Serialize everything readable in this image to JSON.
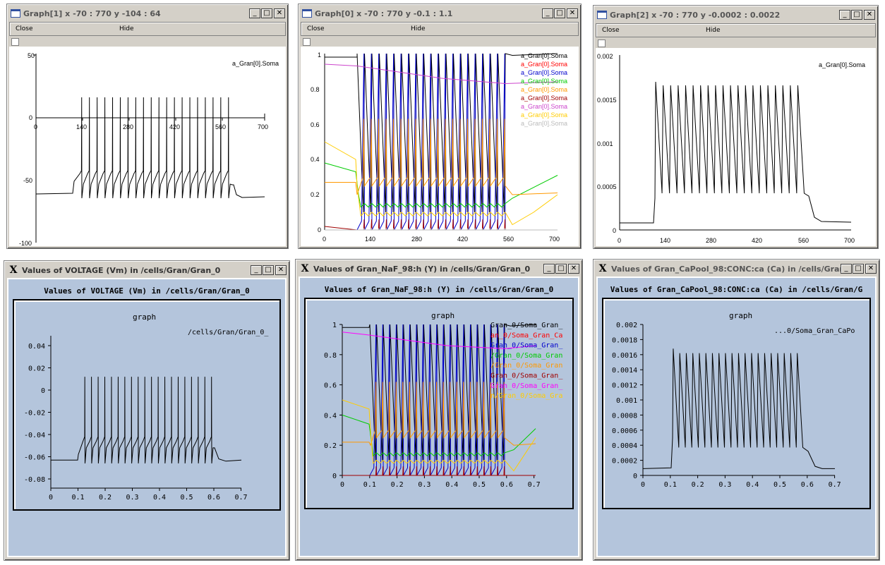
{
  "neuron_windows": [
    {
      "title": "Graph[1]",
      "coords": "x -70 : 770  y -104 : 64",
      "menu": {
        "close": "Close",
        "hide": "Hide"
      },
      "label": "a_Gran[0].Soma",
      "yticks": [
        "50",
        "0",
        "-50",
        "-100"
      ],
      "xticks": [
        "0",
        "140",
        "280",
        "420",
        "560",
        "700"
      ]
    },
    {
      "title": "Graph[0]",
      "coords": "x -70 : 770  y -0.1 : 1.1",
      "menu": {
        "close": "Close",
        "hide": "Hide"
      },
      "labels": [
        {
          "text": "a_Gran[0].Soma",
          "color": "#000000"
        },
        {
          "text": "a_Gran[0].Soma",
          "color": "#ff0000"
        },
        {
          "text": "a_Gran[0].Soma",
          "color": "#0000cc"
        },
        {
          "text": "a_Gran[0].Soma",
          "color": "#00cc00"
        },
        {
          "text": "a_Gran[0].Soma",
          "color": "#ff9900"
        },
        {
          "text": "a_Gran[0].Soma",
          "color": "#a00000"
        },
        {
          "text": "a_Gran[0].Soma",
          "color": "#cc44cc"
        },
        {
          "text": "a_Gran[0].Soma",
          "color": "#ffcc00"
        },
        {
          "text": "a_Gran[0].Soma",
          "color": "#bbbbbb"
        }
      ],
      "yticks": [
        "1",
        "0.8",
        "0.6",
        "0.4",
        "0.2",
        "0"
      ],
      "xticks": [
        "0",
        "140",
        "280",
        "420",
        "560",
        "700"
      ]
    },
    {
      "title": "Graph[2]",
      "coords": "x -70 : 770  y -0.0002 : 0.0022",
      "menu": {
        "close": "Close",
        "hide": "Hide"
      },
      "label": "a_Gran[0].Soma",
      "yticks": [
        "0.002",
        "0.0015",
        "0.001",
        "0.0005",
        "0"
      ],
      "xticks": [
        "0",
        "140",
        "280",
        "420",
        "560",
        "700"
      ]
    }
  ],
  "xgraph_windows": [
    {
      "window_title": "Values of VOLTAGE (Vm) in /cells/Gran/Gran_0",
      "heading": "Values of VOLTAGE (Vm) in /cells/Gran/Gran_0",
      "graph_label": "graph",
      "legend": [
        {
          "text": "/cells/Gran/Gran_0_",
          "color": "#000000"
        }
      ],
      "yticks": [
        "0.04",
        "0.02",
        "0",
        "-0.02",
        "-0.04",
        "-0.06",
        "-0.08"
      ],
      "xticks": [
        "0",
        "0.1",
        "0.2",
        "0.3",
        "0.4",
        "0.5",
        "0.6",
        "0.7"
      ]
    },
    {
      "window_title": "Values of Gran_NaF_98:h (Y) in /cells/Gran/Gran_0",
      "heading": "Values of Gran_NaF_98:h (Y) in /cells/Gran/Gran_0",
      "graph_label": "graph",
      "legend": [
        {
          "text": "Gran_0/Soma_Gran_",
          "color": "#000000"
        },
        {
          "text": "an_0/Soma_Gran_Ca",
          "color": "#ff0000"
        },
        {
          "text": "Gran_0/Soma_Gran_",
          "color": "#0000cc"
        },
        {
          "text": "/Gran_0/Soma_Gran",
          "color": "#00cc00"
        },
        {
          "text": "/Gran_0/Soma_Gran",
          "color": "#ff9900"
        },
        {
          "text": "Gran_0/Soma_Gran_",
          "color": "#a00000"
        },
        {
          "text": "Gran_0/Soma_Gran_",
          "color": "#ff00ff"
        },
        {
          "text": "n/Gran_0/Soma_Gra",
          "color": "#ffcc00"
        }
      ],
      "yticks": [
        "1",
        "0.8",
        "0.6",
        "0.4",
        "0.2",
        "0"
      ],
      "xticks": [
        "0",
        "0.1",
        "0.2",
        "0.3",
        "0.4",
        "0.5",
        "0.6",
        "0.7"
      ]
    },
    {
      "window_title": "Values of Gran_CaPool_98:CONC:ca (Ca) in /cells/Gran/G",
      "heading": "Values of Gran_CaPool_98:CONC:ca (Ca) in /cells/Gran/G",
      "graph_label": "graph",
      "legend": [
        {
          "text": "...0/Soma_Gran_CaPo",
          "color": "#000000"
        }
      ],
      "yticks": [
        "0.002",
        "0.0018",
        "0.0016",
        "0.0014",
        "0.0012",
        "0.001",
        "0.0008",
        "0.0006",
        "0.0004",
        "0.0002",
        "0"
      ],
      "xticks": [
        "0",
        "0.1",
        "0.2",
        "0.3",
        "0.4",
        "0.5",
        "0.6",
        "0.7"
      ]
    }
  ],
  "chart_data": [
    {
      "type": "line",
      "title": "",
      "xlabel": "",
      "ylabel": "",
      "xlim": [
        -70,
        770
      ],
      "ylim": [
        -104,
        64
      ],
      "series": [
        {
          "name": "a_Gran[0].Soma",
          "color": "#000000",
          "rest": -65,
          "spike_peak": 15,
          "trough": -65,
          "spike_start": 100,
          "spike_end": 590,
          "spike_count": 20
        }
      ]
    },
    {
      "type": "line",
      "title": "",
      "xlabel": "",
      "ylabel": "",
      "xlim": [
        -70,
        770
      ],
      "ylim": [
        -0.1,
        1.1
      ],
      "series": [
        {
          "name": "a_Gran[0].Soma",
          "color": "#000000",
          "start": 0.98
        },
        {
          "name": "a_Gran[0].Soma",
          "color": "#ff0000",
          "start": 0.0
        },
        {
          "name": "a_Gran[0].Soma",
          "color": "#0000cc",
          "start": 0.0
        },
        {
          "name": "a_Gran[0].Soma",
          "color": "#00cc00",
          "start": 0.38
        },
        {
          "name": "a_Gran[0].Soma",
          "color": "#ff9900",
          "start": 0.27
        },
        {
          "name": "a_Gran[0].Soma",
          "color": "#a00000",
          "start": 0.02
        },
        {
          "name": "a_Gran[0].Soma",
          "color": "#cc44cc",
          "start": 0.94
        },
        {
          "name": "a_Gran[0].Soma",
          "color": "#ffcc00",
          "start": 0.5
        },
        {
          "name": "a_Gran[0].Soma",
          "color": "#bbbbbb",
          "start": 0.0
        }
      ]
    },
    {
      "type": "line",
      "title": "",
      "xlabel": "",
      "ylabel": "",
      "xlim": [
        -70,
        770
      ],
      "ylim": [
        -0.0002,
        0.0022
      ],
      "series": [
        {
          "name": "a_Gran[0].Soma",
          "color": "#000000",
          "baseline": 9e-05,
          "peak": 0.00165,
          "trough": 0.00037
        }
      ]
    },
    {
      "type": "line",
      "title": "",
      "xlabel": "",
      "ylabel": "",
      "xlim": [
        0,
        0.7
      ],
      "ylim": [
        -0.08,
        0.05
      ],
      "series": [
        {
          "name": "/cells/Gran/Gran_0_",
          "color": "#000000",
          "rest": -0.065,
          "spike_peak": 0.015
        }
      ]
    },
    {
      "type": "line",
      "title": "",
      "xlabel": "",
      "ylabel": "",
      "xlim": [
        0,
        0.7
      ],
      "ylim": [
        0,
        1
      ],
      "series": [
        {
          "name": "Gran_0/Soma_Gran_",
          "color": "#000000"
        },
        {
          "name": "an_0/Soma_Gran_Ca",
          "color": "#ff0000"
        },
        {
          "name": "Gran_0/Soma_Gran_",
          "color": "#0000cc"
        },
        {
          "name": "/Gran_0/Soma_Gran",
          "color": "#00cc00"
        },
        {
          "name": "/Gran_0/Soma_Gran",
          "color": "#ff9900"
        },
        {
          "name": "Gran_0/Soma_Gran_",
          "color": "#a00000"
        },
        {
          "name": "Gran_0/Soma_Gran_",
          "color": "#ff00ff"
        },
        {
          "name": "n/Gran_0/Soma_Gra",
          "color": "#ffcc00"
        }
      ]
    },
    {
      "type": "line",
      "title": "",
      "xlabel": "",
      "ylabel": "",
      "xlim": [
        0,
        0.7
      ],
      "ylim": [
        0,
        0.002
      ],
      "series": [
        {
          "name": "...0/Soma_Gran_CaPo",
          "color": "#000000",
          "baseline": 9e-05,
          "peak": 0.00165,
          "trough": 0.00037
        }
      ]
    }
  ]
}
